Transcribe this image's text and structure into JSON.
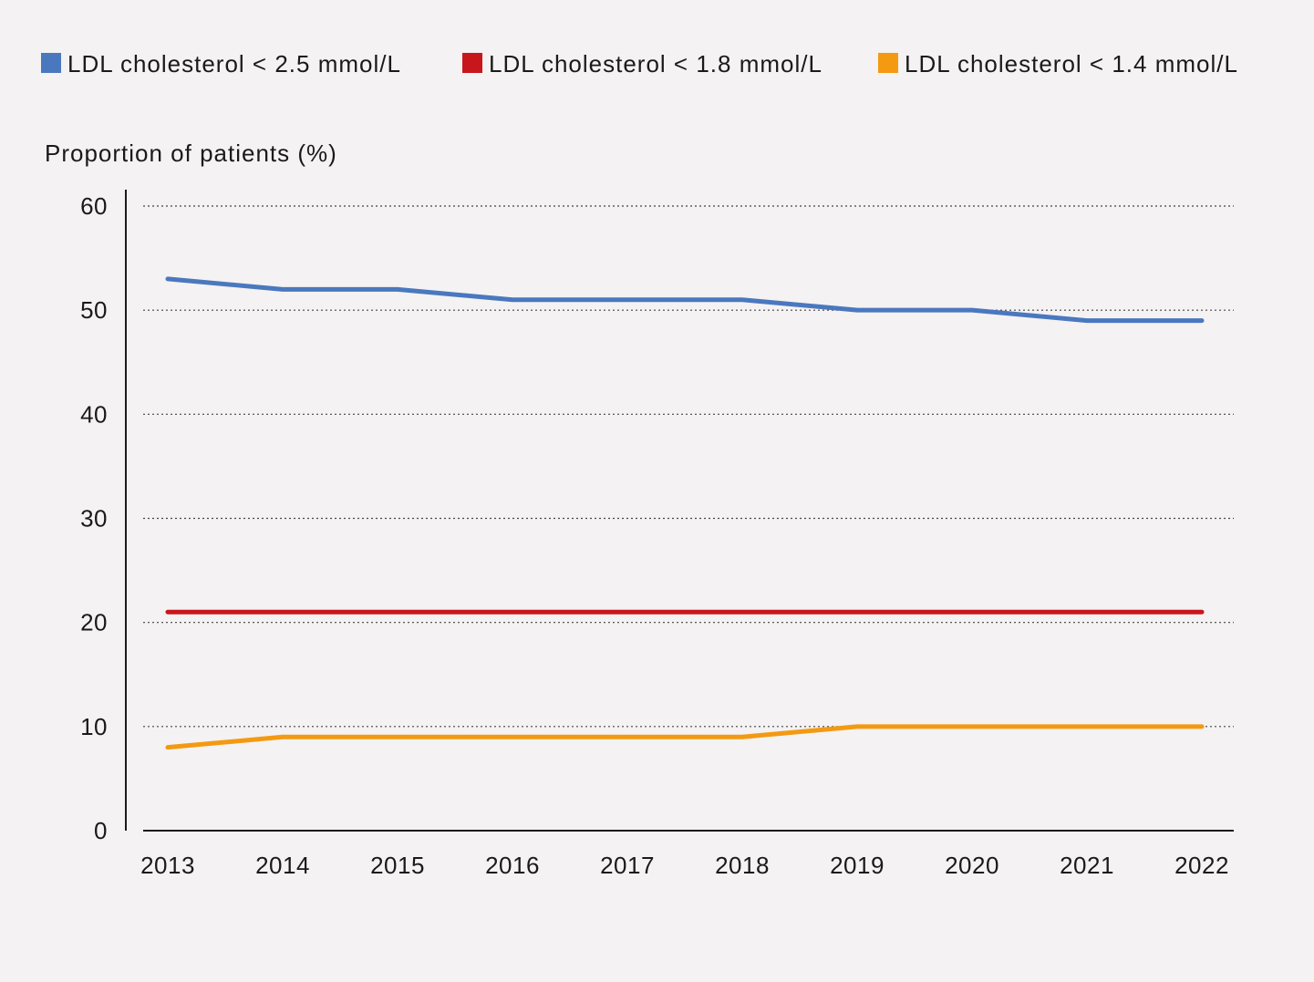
{
  "chart_data": {
    "type": "line",
    "title": "",
    "xlabel": "",
    "ylabel": "Proportion of patients (%)",
    "ylim": [
      0,
      60
    ],
    "yticks": [
      0,
      10,
      20,
      30,
      40,
      50,
      60
    ],
    "grid": true,
    "legend_position": "top",
    "categories": [
      "2013",
      "2014",
      "2015",
      "2016",
      "2017",
      "2018",
      "2019",
      "2020",
      "2021",
      "2022"
    ],
    "series": [
      {
        "name": "LDL cholesterol < 2.5 mmol/L",
        "color": "#4a78bf",
        "values": [
          53,
          52,
          52,
          51,
          51,
          51,
          50,
          50,
          49,
          49
        ]
      },
      {
        "name": "LDL cholesterol < 1.8 mmol/L",
        "color": "#c8161d",
        "values": [
          21,
          21,
          21,
          21,
          21,
          21,
          21,
          21,
          21,
          21
        ]
      },
      {
        "name": "LDL cholesterol < 1.4 mmol/L",
        "color": "#f39a12",
        "values": [
          8,
          9,
          9,
          9,
          9,
          9,
          10,
          10,
          10,
          10
        ]
      }
    ]
  }
}
